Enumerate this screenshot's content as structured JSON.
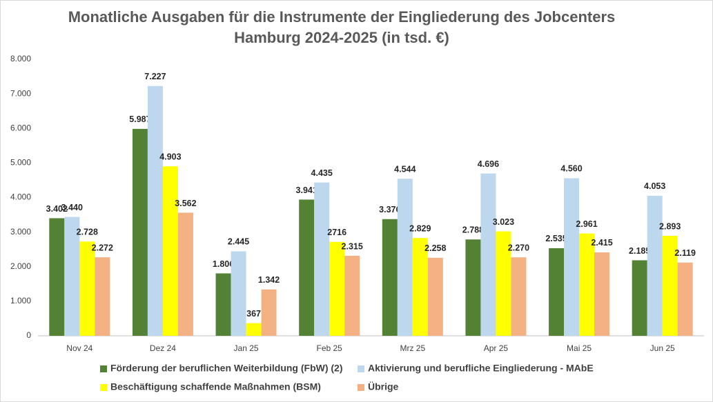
{
  "chart_data": {
    "type": "bar",
    "title": [
      "Monatliche Ausgaben für die Instrumente der Eingliederung des Jobcenters",
      "Hamburg 2024-2025 (in tsd. €)"
    ],
    "categories": [
      "Nov 24",
      "Dez 24",
      "Jan 25",
      "Feb 25",
      "Mrz 25",
      "Apr 25",
      "Mai 25",
      "Jun 25"
    ],
    "series": [
      {
        "name": "Förderung der beruflichen Weiterbildung (FbW) (2)",
        "color": "#548235",
        "values": [
          3402,
          5987,
          1806,
          3941,
          3376,
          2788,
          2535,
          2185
        ],
        "value_labels": [
          "3.402",
          "5.987",
          "1.806",
          "3.941",
          "3.376",
          "2.788",
          "2.535",
          "2.185"
        ]
      },
      {
        "name": "Aktivierung und berufliche Eingliederung - MAbE",
        "color": "#bdd7ee",
        "values": [
          3440,
          7227,
          2445,
          4435,
          4544,
          4696,
          4560,
          4053
        ],
        "value_labels": [
          "3.440",
          "7.227",
          "2.445",
          "4.435",
          "4.544",
          "4.696",
          "4.560",
          "4.053"
        ]
      },
      {
        "name": "Beschäftigung schaffende Maßnahmen (BSM)",
        "color": "#ffff00",
        "values": [
          2728,
          4903,
          367,
          2716,
          2829,
          3023,
          2961,
          2893
        ],
        "value_labels": [
          "2.728",
          "4.903",
          "367",
          "2716",
          "2.829",
          "3.023",
          "2.961",
          "2.893"
        ]
      },
      {
        "name": "Übrige",
        "color": "#f4b183",
        "values": [
          2272,
          3562,
          1342,
          2315,
          2258,
          2270,
          2415,
          2119
        ],
        "value_labels": [
          "2.272",
          "3.562",
          "1.342",
          "2.315",
          "2.258",
          "2.270",
          "2.415",
          "2.119"
        ]
      }
    ],
    "ylim": [
      0,
      8000
    ],
    "yticks": [
      0,
      {
        "value": 1000,
        "label": "1.000"
      },
      {
        "value": 2000,
        "label": "2.000"
      },
      {
        "value": 3000,
        "label": "3.000"
      },
      {
        "value": 4000,
        "label": "4.000"
      },
      {
        "value": 5000,
        "label": "5.000"
      },
      {
        "value": 6000,
        "label": "6.000"
      },
      {
        "value": 7000,
        "label": "7.000"
      },
      {
        "value": 8000,
        "label": "8.000"
      }
    ],
    "grid": false
  }
}
